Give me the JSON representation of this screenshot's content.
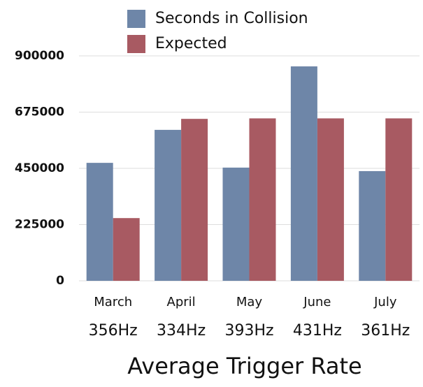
{
  "chart_data": {
    "type": "bar",
    "x_label": "Average Trigger Rate",
    "categories": [
      "March",
      "April",
      "May",
      "June",
      "July"
    ],
    "category_sublabels": [
      "356Hz",
      "334Hz",
      "393Hz",
      "431Hz",
      "361Hz"
    ],
    "series": [
      {
        "name": "Seconds in Collision",
        "color": "#6e86a8",
        "values": [
          472000,
          604000,
          453000,
          858000,
          439000
        ]
      },
      {
        "name": "Expected",
        "color": "#a85a62",
        "values": [
          251000,
          648000,
          650000,
          650000,
          650000
        ]
      }
    ],
    "ylim": [
      0,
      900000
    ],
    "yticks": [
      0,
      225000,
      450000,
      675000,
      900000
    ],
    "grid": true,
    "legend": "top"
  }
}
